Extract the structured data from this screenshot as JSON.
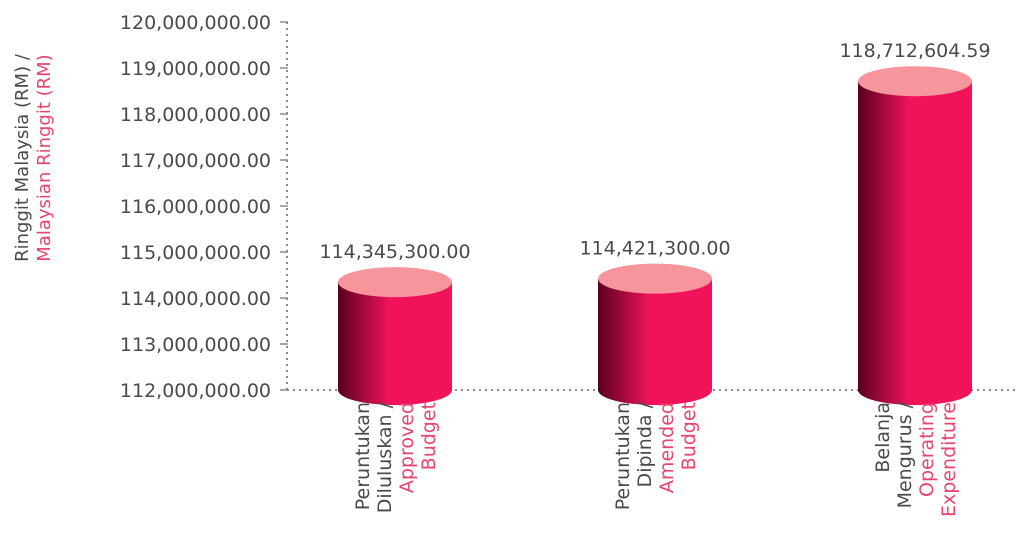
{
  "chart_data": {
    "type": "bar",
    "style": "cylinder",
    "title": "",
    "categories": [
      {
        "line1": "Peruntukan",
        "line2": "Diluluskan /",
        "line3": "Approved",
        "line4": "Budget"
      },
      {
        "line1": "Peruntukan",
        "line2": "Dipinda /",
        "line3": "Amended",
        "line4": "Budget"
      },
      {
        "line1": "Belanja",
        "line2": "Mengurus /",
        "line3": "Operating",
        "line4": "Expenditure"
      }
    ],
    "values": [
      114345300.0,
      114421300.0,
      118712604.59
    ],
    "value_labels": [
      "114,345,300.00",
      "114,421,300.00",
      "118,712,604.59"
    ],
    "ylabel": {
      "malay": "Ringgit Malaysia (RM) /",
      "english": "Malaysian Ringgit (RM)"
    },
    "ylim": [
      112000000,
      120000000
    ],
    "yticks": [
      {
        "value": 112000000,
        "label": "112,000,000.00"
      },
      {
        "value": 113000000,
        "label": "113,000,000.00"
      },
      {
        "value": 114000000,
        "label": "114,000,000.00"
      },
      {
        "value": 115000000,
        "label": "115,000,000.00"
      },
      {
        "value": 116000000,
        "label": "116,000,000.00"
      },
      {
        "value": 117000000,
        "label": "117,000,000.00"
      },
      {
        "value": 118000000,
        "label": "118,000,000.00"
      },
      {
        "value": 119000000,
        "label": "119,000,000.00"
      },
      {
        "value": 120000000,
        "label": "120,000,000.00"
      }
    ],
    "grid": false,
    "legend": "none",
    "colors": {
      "bar_light": "#f0135a",
      "bar_dark": "#5a0020",
      "bar_top": "#f7959c",
      "english_text": "#e8456e",
      "malay_text": "#4a4a4a",
      "axis": "#8a8a8a"
    }
  }
}
